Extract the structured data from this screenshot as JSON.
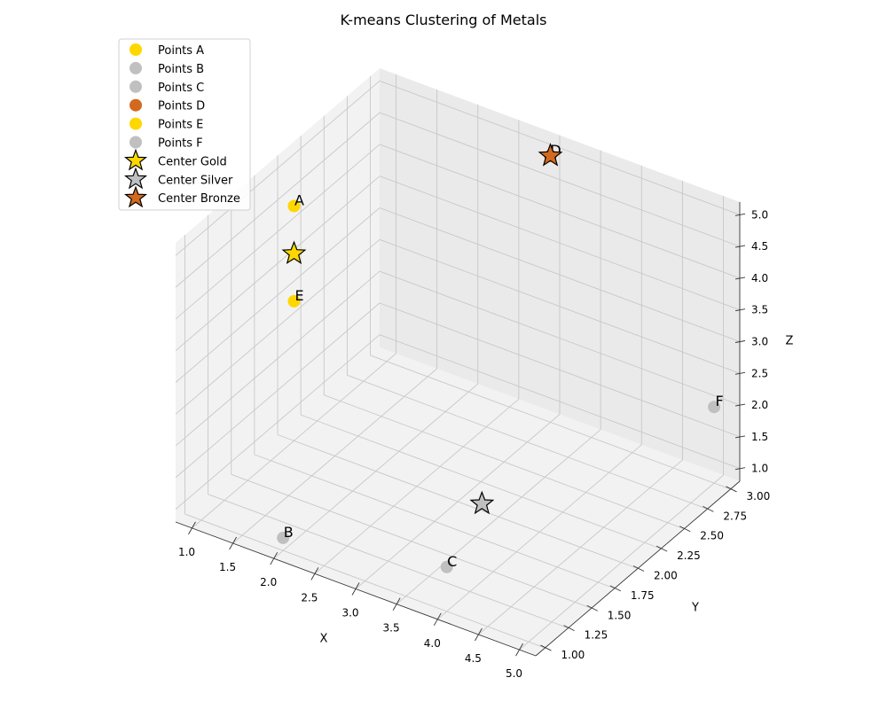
{
  "chart_data": {
    "type": "scatter3d",
    "title": "K-means Clustering of Metals",
    "xlabel": "X",
    "ylabel": "Y",
    "zlabel": "Z",
    "xlim": [
      0.8,
      5.2
    ],
    "ylim": [
      0.9,
      3.1
    ],
    "zlim": [
      0.8,
      5.2
    ],
    "x_ticks": [
      "1.0",
      "1.5",
      "2.0",
      "2.5",
      "3.0",
      "3.5",
      "4.0",
      "4.5",
      "5.0"
    ],
    "y_ticks": [
      "1.00",
      "1.25",
      "1.50",
      "1.75",
      "2.00",
      "2.25",
      "2.50",
      "2.75",
      "3.00"
    ],
    "z_ticks": [
      "1.0",
      "1.5",
      "2.0",
      "2.5",
      "3.0",
      "3.5",
      "4.0",
      "4.5",
      "5.0"
    ],
    "grid": true,
    "legend_position": "top-left",
    "points": [
      {
        "name": "Points A",
        "label": "A",
        "x": 1.0,
        "y": 2.0,
        "z": 4.5,
        "color": "#FFD700"
      },
      {
        "name": "Points B",
        "label": "B",
        "x": 2.0,
        "y": 1.0,
        "z": 1.0,
        "color": "#C0C0C0"
      },
      {
        "name": "Points C",
        "label": "C",
        "x": 4.0,
        "y": 1.0,
        "z": 1.5,
        "color": "#C0C0C0"
      },
      {
        "name": "Points D",
        "label": "D",
        "x": 3.0,
        "y": 3.0,
        "z": 5.0,
        "color": "#D2691E"
      },
      {
        "name": "Points E",
        "label": "E",
        "x": 1.0,
        "y": 2.0,
        "z": 3.0,
        "color": "#FFD700"
      },
      {
        "name": "Points F",
        "label": "F",
        "x": 5.0,
        "y": 3.0,
        "z": 2.0,
        "color": "#C0C0C0"
      }
    ],
    "centers": [
      {
        "name": "Center Gold",
        "x": 1.0,
        "y": 2.0,
        "z": 3.75,
        "color": "#FFD700"
      },
      {
        "name": "Center Silver",
        "x": 3.67,
        "y": 1.67,
        "z": 1.5,
        "color": "#C0C0C0"
      },
      {
        "name": "Center Bronze",
        "x": 3.0,
        "y": 3.0,
        "z": 5.0,
        "color": "#D2691E"
      }
    ]
  }
}
